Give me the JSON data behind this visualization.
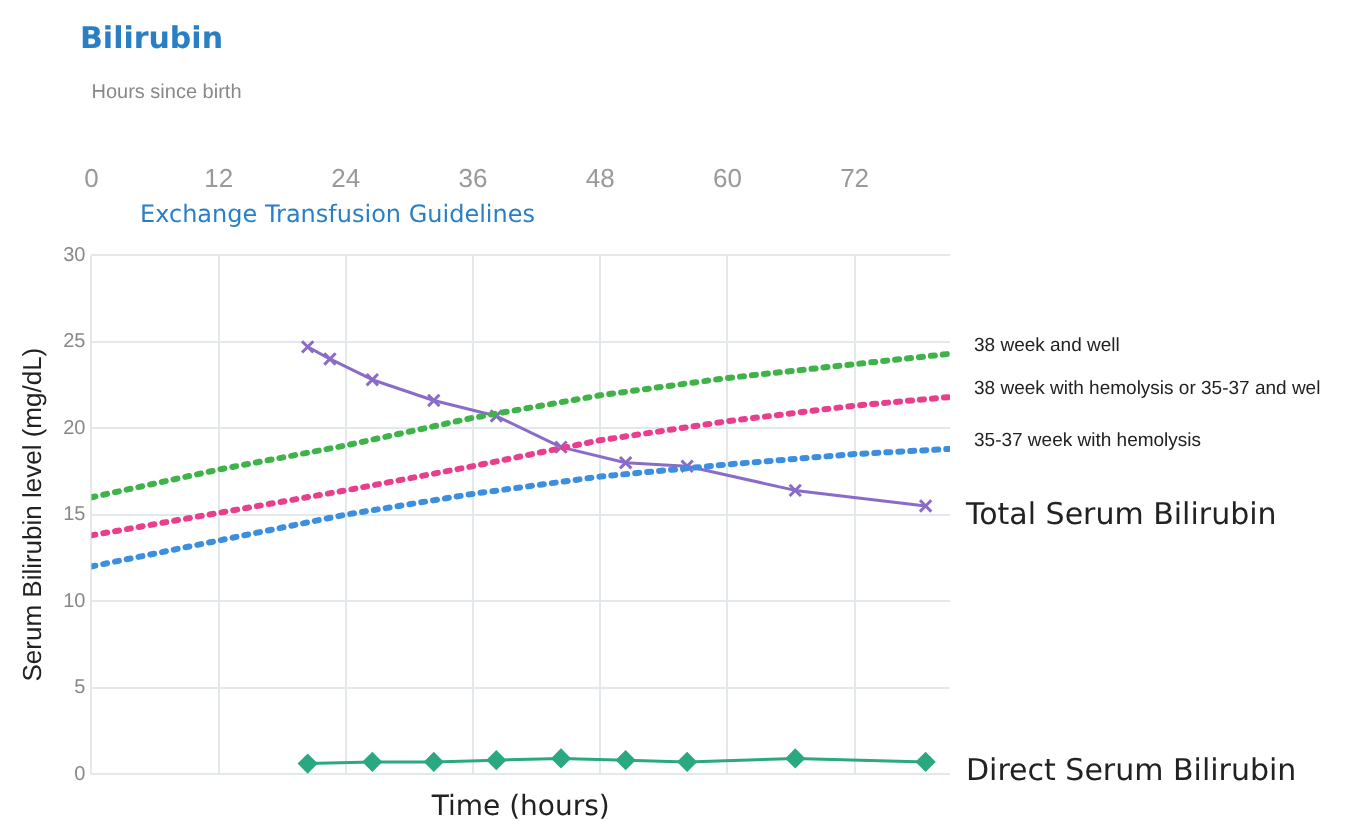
{
  "chart_data": {
    "type": "line",
    "title": "Bilirubin",
    "subtitle": "Exchange Transfusion Guidelines",
    "xlabel": "Hours since birth",
    "ylabel": "Serum Bilirubin level (mg/dL)",
    "annotations": [
      "Time (hours)"
    ],
    "xlim": [
      0,
      81
    ],
    "xticks": [
      0,
      12,
      24,
      36,
      48,
      60,
      72
    ],
    "ylim": [
      0,
      30
    ],
    "yticks": [
      0,
      5,
      10,
      15,
      20,
      25,
      30
    ],
    "grid": true,
    "legend": false,
    "series": [
      {
        "name": "38 week and well",
        "color": "#3fb34a",
        "marker": "none",
        "line_style": "dotted",
        "x": [
          0,
          12,
          24,
          36,
          48,
          60,
          72,
          81
        ],
        "values": [
          16.0,
          17.6,
          19.0,
          20.6,
          21.9,
          22.9,
          23.7,
          24.3
        ]
      },
      {
        "name": "38 week with hemolysis or 35-37 and wel",
        "color": "#e83e8c",
        "marker": "none",
        "line_style": "dotted",
        "x": [
          0,
          12,
          24,
          36,
          48,
          60,
          72,
          81
        ],
        "values": [
          13.8,
          15.1,
          16.4,
          17.8,
          19.3,
          20.4,
          21.3,
          21.8
        ]
      },
      {
        "name": "35-37 week with hemolysis",
        "color": "#3b8ee0",
        "marker": "none",
        "line_style": "dotted",
        "x": [
          0,
          12,
          24,
          36,
          48,
          60,
          72,
          81
        ],
        "values": [
          12.0,
          13.5,
          15.0,
          16.2,
          17.2,
          17.9,
          18.5,
          18.8
        ]
      },
      {
        "name": "Total Serum Bilirubin",
        "color": "#8a6cc8",
        "marker": "cross",
        "line_style": "solid",
        "x": [
          20.4,
          22.5,
          26.5,
          32.3,
          38.2,
          44.3,
          50.4,
          56.2,
          66.4,
          78.7
        ],
        "values": [
          24.7,
          24.0,
          22.8,
          21.6,
          20.7,
          18.9,
          18.0,
          17.8,
          16.4,
          15.5
        ]
      },
      {
        "name": "Direct Serum Bilirubin",
        "color": "#2aa880",
        "marker": "diamond",
        "line_style": "solid",
        "x": [
          20.4,
          26.5,
          32.3,
          38.2,
          44.3,
          50.4,
          56.2,
          66.4,
          78.7
        ],
        "values": [
          0.6,
          0.7,
          0.7,
          0.8,
          0.9,
          0.8,
          0.7,
          0.9,
          0.7
        ]
      }
    ]
  }
}
